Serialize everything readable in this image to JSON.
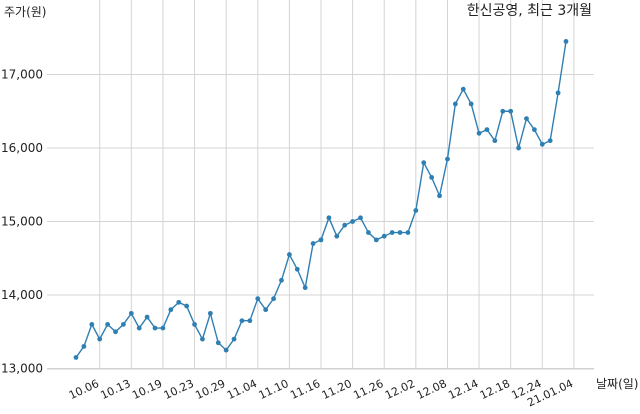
{
  "chart_data": {
    "type": "line",
    "title": "한신공영, 최근 3개월",
    "ylabel": "주가(원)",
    "xlabel": "날짜(일)",
    "ylim": [
      13000,
      17800
    ],
    "yticks": [
      13000,
      14000,
      15000,
      16000,
      17000
    ],
    "ytick_labels": [
      "13,000",
      "14,000",
      "15,000",
      "16,000",
      "17,000"
    ],
    "grid": true,
    "line_color": "#2f7fb3",
    "series": [
      {
        "values": [
          13150,
          13300,
          13600,
          13400,
          13600,
          13500,
          13600,
          13750,
          13550,
          13700,
          13550,
          13550,
          13800,
          13900,
          13850,
          13600,
          13400,
          13750,
          13350,
          13250,
          13400,
          13650,
          13650,
          13950,
          13800,
          13950,
          14200,
          14550,
          14350,
          14100,
          14700,
          14750,
          15050,
          14800,
          14950,
          15000,
          15050,
          14850,
          14750,
          14800,
          14850,
          14850,
          14850,
          15150,
          15800,
          15600,
          15350,
          15850,
          16600,
          16800,
          16600,
          16200,
          16250,
          16100,
          16500,
          16500,
          16000,
          16400,
          16250,
          16050,
          16100,
          16750,
          17450
        ]
      }
    ],
    "x_tick_labels": [
      "10.06",
      "10.13",
      "10.19",
      "10.23",
      "10.29",
      "11.04",
      "11.10",
      "11.16",
      "11.20",
      "11.26",
      "12.02",
      "12.08",
      "12.14",
      "12.18",
      "12.24",
      "21.01.04"
    ],
    "x_tick_indices": [
      3,
      7,
      11,
      15,
      19,
      23,
      27,
      31,
      35,
      39,
      43,
      47,
      51,
      55,
      59,
      63
    ]
  }
}
